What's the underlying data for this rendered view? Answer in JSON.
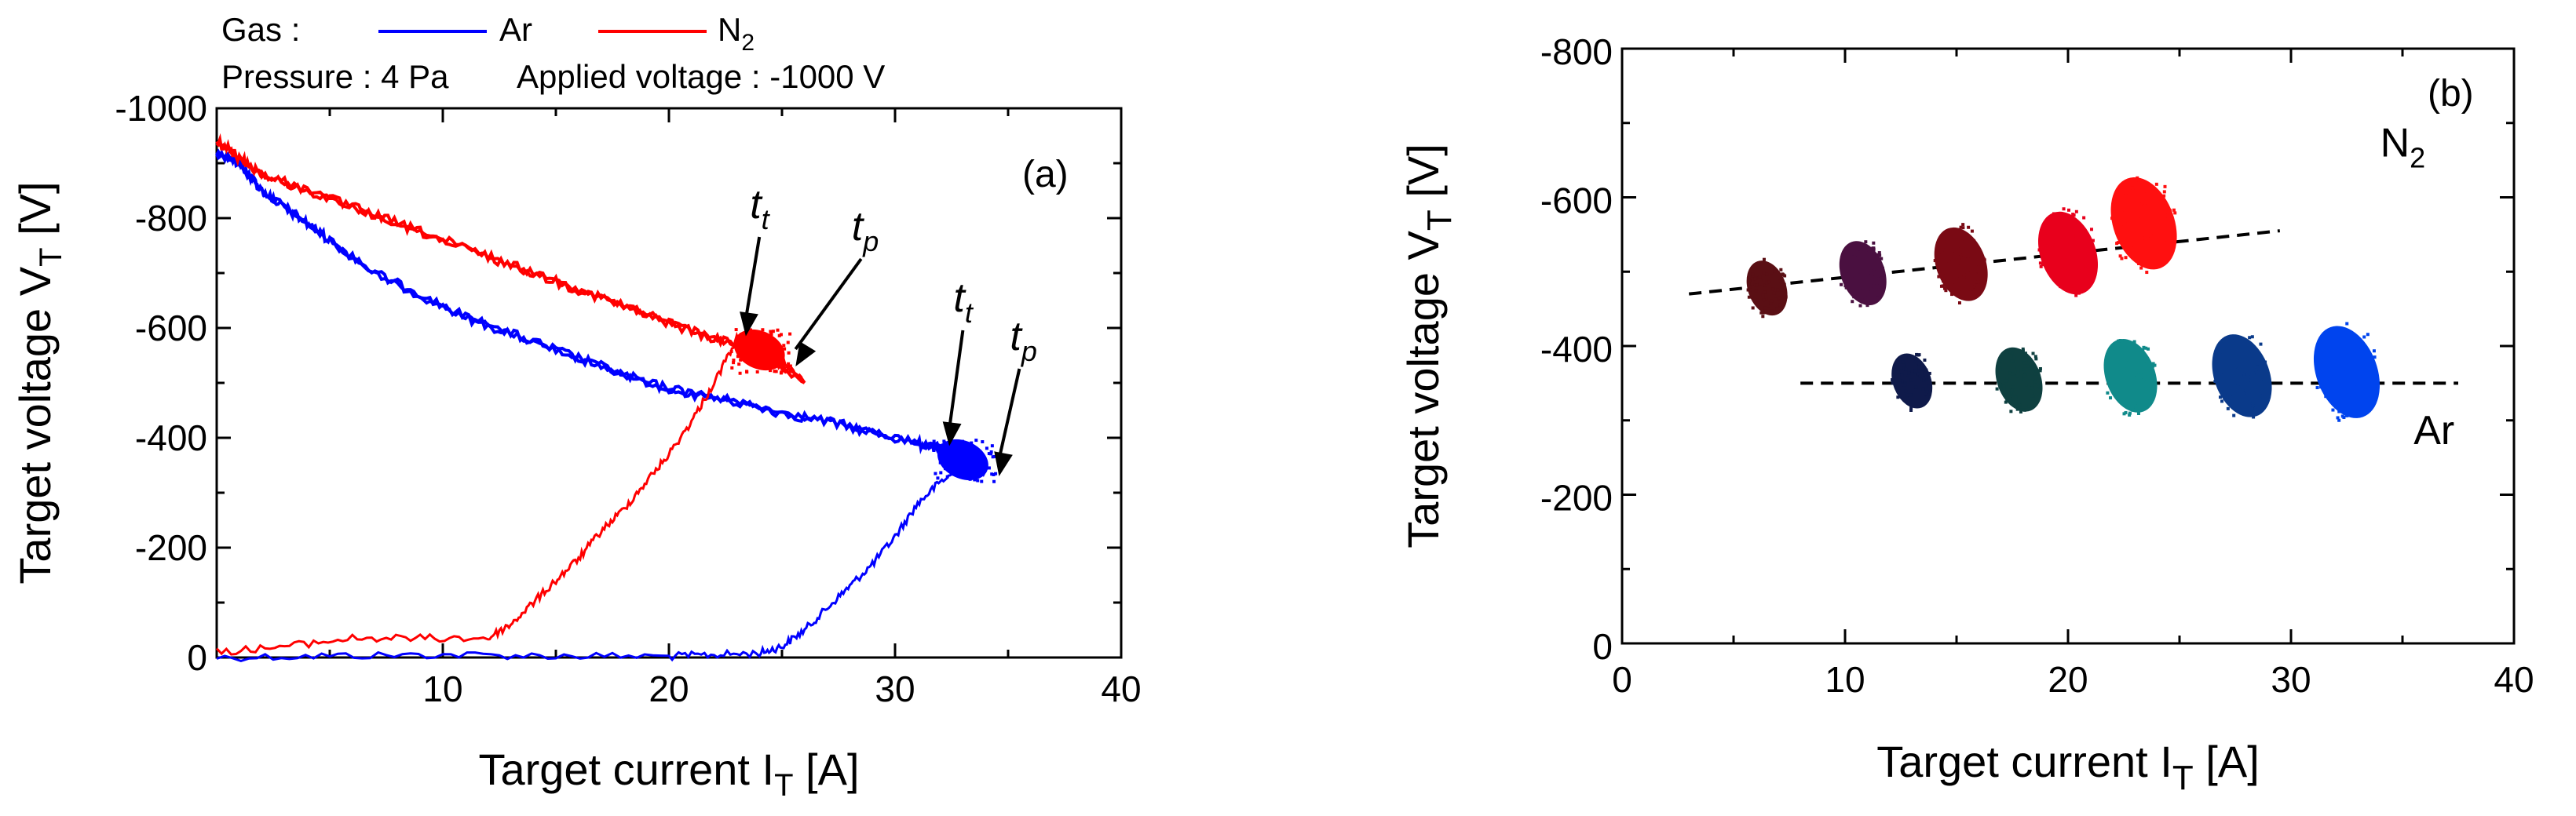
{
  "chart_data": [
    {
      "panel": "(a)",
      "type": "line",
      "xlabel": "Target current I",
      "xlabel_sub": "T",
      "xlabel_unit": " [A]",
      "ylabel": "Target voltage V",
      "ylabel_sub": "T",
      "ylabel_unit": " [V]",
      "xlim": [
        0,
        40
      ],
      "ylim": [
        0,
        -1000
      ],
      "xticks": [
        10,
        20,
        30,
        40
      ],
      "yticks": [
        0,
        -200,
        -400,
        -600,
        -800,
        -1000
      ],
      "xtick_labels": [
        "10",
        "20",
        "30",
        "40"
      ],
      "ytick_labels": [
        "0",
        "-200",
        "-400",
        "-600",
        "-800",
        "-1000"
      ],
      "legend": {
        "gas_label": "Gas :",
        "entries": [
          {
            "name": "Ar",
            "color": "#0000ff"
          },
          {
            "name": "N",
            "sub": "2",
            "color": "#ff0000"
          }
        ],
        "pressure_text": "Pressure : 4 Pa",
        "voltage_text": "Applied voltage : -1000 V"
      },
      "series": [
        {
          "name": "Ar",
          "color": "#0000ff",
          "rise": [
            [
              0,
              0
            ],
            [
              5,
              -3
            ],
            [
              10,
              -5
            ],
            [
              15,
              -3
            ],
            [
              20,
              -2
            ],
            [
              22,
              -5
            ],
            [
              24,
              -8
            ],
            [
              25,
              -20
            ],
            [
              26,
              -50
            ],
            [
              27,
              -90
            ],
            [
              28,
              -130
            ],
            [
              29,
              -170
            ],
            [
              30,
              -220
            ],
            [
              31,
              -280
            ],
            [
              32,
              -320
            ],
            [
              33,
              -345
            ],
            [
              34,
              -340
            ]
          ],
          "decay": [
            [
              0,
              -920
            ],
            [
              1,
              -900
            ],
            [
              2,
              -850
            ],
            [
              3,
              -820
            ],
            [
              4,
              -790
            ],
            [
              5,
              -760
            ],
            [
              7,
              -700
            ],
            [
              9,
              -660
            ],
            [
              11,
              -620
            ],
            [
              13,
              -590
            ],
            [
              15,
              -560
            ],
            [
              17,
              -530
            ],
            [
              19,
              -500
            ],
            [
              21,
              -480
            ],
            [
              23,
              -465
            ],
            [
              25,
              -445
            ],
            [
              27,
              -430
            ],
            [
              29,
              -410
            ],
            [
              31,
              -390
            ],
            [
              32,
              -380
            ],
            [
              33,
              -360
            ],
            [
              34,
              -340
            ]
          ],
          "cluster_center": [
            33,
            -360
          ]
        },
        {
          "name": "N2",
          "color": "#ff0000",
          "rise": [
            [
              0,
              -10
            ],
            [
              3,
              -20
            ],
            [
              6,
              -35
            ],
            [
              9,
              -35
            ],
            [
              12,
              -35
            ],
            [
              13,
              -60
            ],
            [
              14,
              -100
            ],
            [
              15,
              -140
            ],
            [
              16,
              -180
            ],
            [
              17,
              -230
            ],
            [
              18,
              -270
            ],
            [
              19,
              -320
            ],
            [
              20,
              -370
            ],
            [
              21,
              -430
            ],
            [
              22,
              -500
            ],
            [
              23,
              -580
            ],
            [
              24,
              -560
            ],
            [
              25,
              -540
            ],
            [
              26,
              -500
            ]
          ],
          "decay": [
            [
              0,
              -940
            ],
            [
              1,
              -910
            ],
            [
              2,
              -880
            ],
            [
              4,
              -850
            ],
            [
              6,
              -820
            ],
            [
              8,
              -790
            ],
            [
              10,
              -760
            ],
            [
              12,
              -730
            ],
            [
              14,
              -700
            ],
            [
              16,
              -670
            ],
            [
              18,
              -640
            ],
            [
              20,
              -610
            ],
            [
              22,
              -580
            ],
            [
              24,
              -560
            ],
            [
              26,
              -500
            ]
          ],
          "cluster_center": [
            24,
            -560
          ]
        }
      ],
      "annotations": [
        {
          "text": "t",
          "sub": "t",
          "x": 24,
          "y": -800
        },
        {
          "text": "t",
          "sub": "p",
          "x": 28.5,
          "y": -760
        },
        {
          "text": "t",
          "sub": "t",
          "x": 33,
          "y": -630
        },
        {
          "text": "t",
          "sub": "p",
          "x": 35.5,
          "y": -560
        }
      ]
    },
    {
      "panel": "(b)",
      "type": "scatter",
      "xlabel": "Target current I",
      "xlabel_sub": "T",
      "xlabel_unit": " [A]",
      "ylabel": "Target voltage V",
      "ylabel_sub": "T",
      "ylabel_unit": " [V]",
      "xlim": [
        0,
        40
      ],
      "ylim": [
        0,
        -800
      ],
      "xticks": [
        0,
        10,
        20,
        30,
        40
      ],
      "yticks": [
        0,
        -200,
        -400,
        -600,
        -800
      ],
      "xtick_labels": [
        "0",
        "10",
        "20",
        "30",
        "40"
      ],
      "ytick_labels": [
        "0",
        "-200",
        "-400",
        "-600",
        "-800"
      ],
      "series": [
        {
          "name": "N2",
          "label": "N",
          "label_sub": "2",
          "label_x": 34,
          "label_y": -655,
          "fit_line": [
            [
              3,
              -470
            ],
            [
              29.5,
              -555
            ]
          ],
          "clusters": [
            {
              "x": 6.5,
              "y": -478,
              "color": "#5a0f14"
            },
            {
              "x": 10.8,
              "y": -498,
              "color": "#4a1040"
            },
            {
              "x": 15.2,
              "y": -510,
              "color": "#7a0a14"
            },
            {
              "x": 20.0,
              "y": -525,
              "color": "#e8001c"
            },
            {
              "x": 23.4,
              "y": -565,
              "color": "#ff1010"
            }
          ]
        },
        {
          "name": "Ar",
          "label": "Ar",
          "label_x": 35.5,
          "label_y": -268,
          "fit_line": [
            [
              8,
              -350
            ],
            [
              37.5,
              -350
            ]
          ],
          "clusters": [
            {
              "x": 13.0,
              "y": -353,
              "color": "#0f1a4a"
            },
            {
              "x": 17.8,
              "y": -355,
              "color": "#0f4040"
            },
            {
              "x": 22.8,
              "y": -360,
              "color": "#108a8a"
            },
            {
              "x": 27.8,
              "y": -360,
              "color": "#0a3a8a"
            },
            {
              "x": 32.5,
              "y": -365,
              "color": "#0044ee"
            }
          ]
        }
      ]
    }
  ]
}
